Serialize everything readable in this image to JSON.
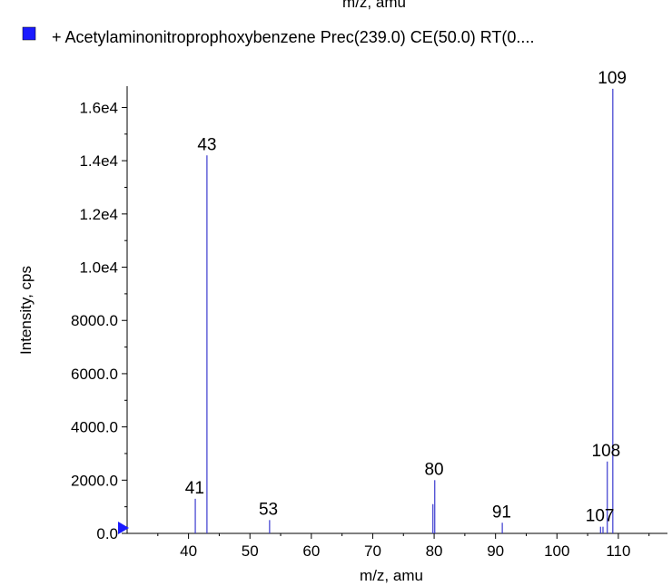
{
  "top_cut_label": "m/z, amu",
  "legend": {
    "label": "+ Acetylaminonitroprophoxybenzene Prec(239.0) CE(50.0) RT(0....",
    "color": "#1a1aff"
  },
  "chart_data": {
    "type": "bar",
    "title": "",
    "xlabel": "m/z, amu",
    "ylabel": "Intensity, cps",
    "xlim": [
      30,
      118
    ],
    "ylim": [
      0,
      16800
    ],
    "x_ticks": [
      40,
      50,
      60,
      70,
      80,
      90,
      100,
      110
    ],
    "x_tick_labels": [
      "40",
      "50",
      "60",
      "70",
      "80",
      "90",
      "100",
      "110"
    ],
    "y_ticks": [
      0,
      2000,
      4000,
      6000,
      8000,
      10000,
      12000,
      14000,
      16000
    ],
    "y_tick_labels": [
      "0.0",
      "2000.0",
      "4000.0",
      "6000.0",
      "8000.0",
      "1.0e4",
      "1.2e4",
      "1.4e4",
      "1.6e4"
    ],
    "series_color": "#3a3acf",
    "peaks": [
      {
        "x": 41.1,
        "y": 1300
      },
      {
        "x": 43.0,
        "y": 14200
      },
      {
        "x": 53.2,
        "y": 500
      },
      {
        "x": 79.8,
        "y": 1100
      },
      {
        "x": 80.1,
        "y": 2000
      },
      {
        "x": 91.1,
        "y": 400
      },
      {
        "x": 107.1,
        "y": 250
      },
      {
        "x": 107.5,
        "y": 250
      },
      {
        "x": 108.2,
        "y": 2700
      },
      {
        "x": 109.1,
        "y": 16700
      }
    ],
    "peak_labels": [
      {
        "x": 41,
        "y": 1300,
        "text": "41"
      },
      {
        "x": 43,
        "y": 14200,
        "text": "43"
      },
      {
        "x": 53,
        "y": 500,
        "text": "53"
      },
      {
        "x": 80,
        "y": 2000,
        "text": "80"
      },
      {
        "x": 91,
        "y": 400,
        "text": "91"
      },
      {
        "x": 107,
        "y": 250,
        "text": "107"
      },
      {
        "x": 108,
        "y": 2700,
        "text": "108"
      },
      {
        "x": 109,
        "y": 16700,
        "text": "109"
      }
    ]
  }
}
